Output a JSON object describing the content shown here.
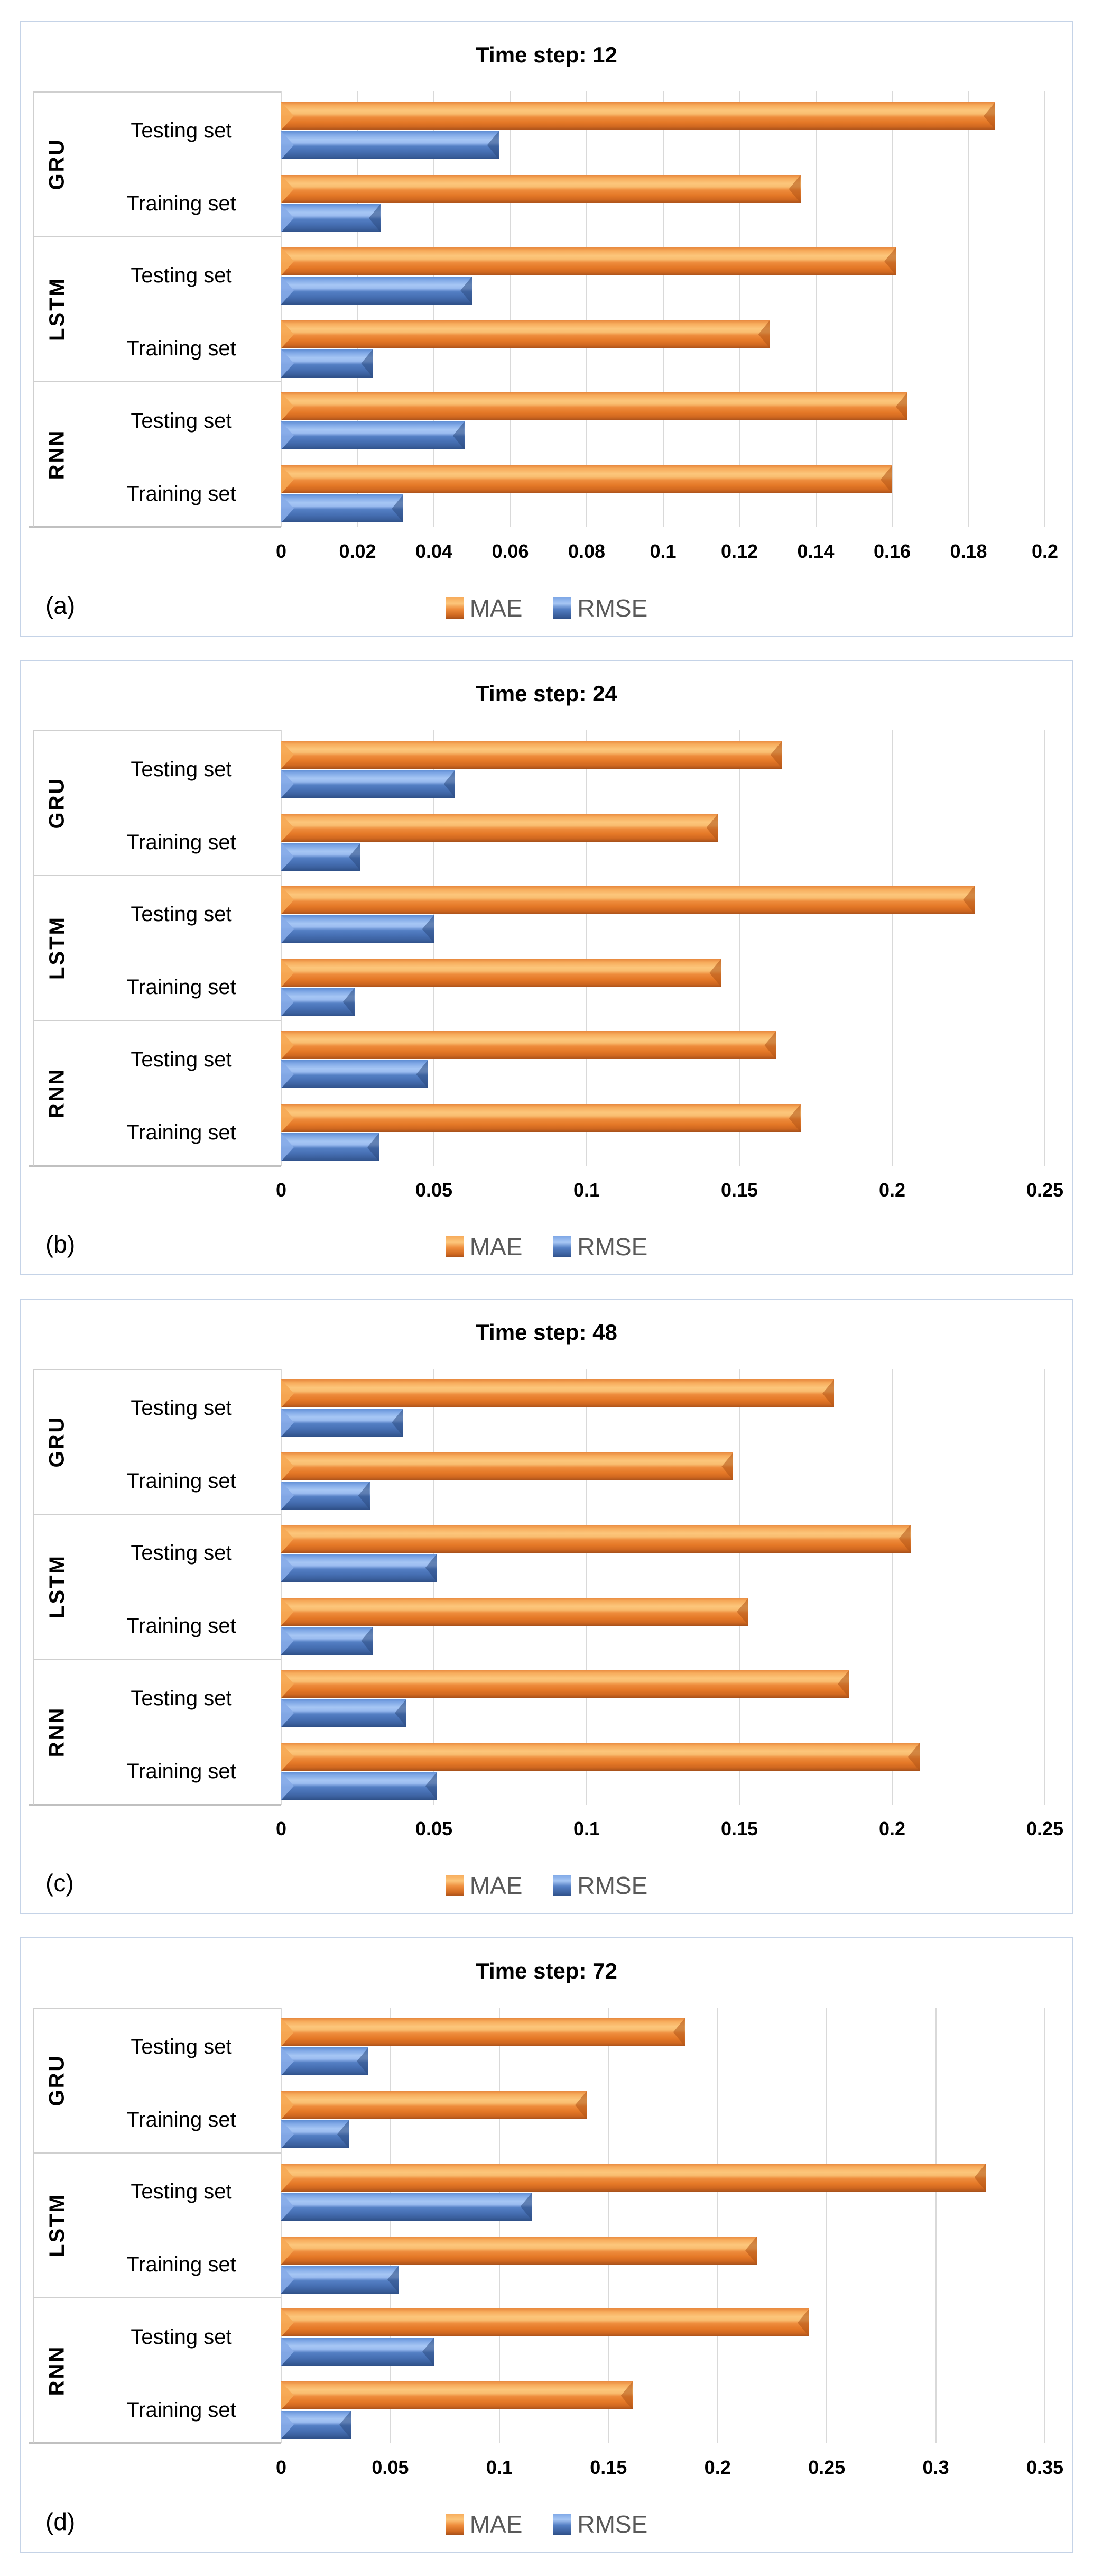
{
  "figure": {
    "colors": {
      "mae": "#ED7D31",
      "rmse": "#4472C4",
      "legend_text": "#595959",
      "gridline": "#D9D9D9",
      "panel_border": "#C5D3E7",
      "background": "#FFFFFF"
    },
    "legend": [
      {
        "name": "MAE",
        "swatch": "mae-swatch-icon"
      },
      {
        "name": "RMSE",
        "swatch": "rmse-swatch-icon"
      }
    ]
  },
  "chart_data": [
    {
      "type": "bar",
      "orientation": "horizontal",
      "panel_label": "(a)",
      "title": "Time step: 12",
      "xlabel": "",
      "ylabel": "",
      "xlim": [
        0,
        0.2
      ],
      "xticks": [
        "0",
        "0.02",
        "0.04",
        "0.06",
        "0.08",
        "0.1",
        "0.12",
        "0.14",
        "0.16",
        "0.18",
        "0.2"
      ],
      "grid": true,
      "legend_position": "bottom",
      "groups": [
        {
          "model": "GRU",
          "rows": [
            {
              "set": "Testing set",
              "MAE": 0.187,
              "RMSE": 0.057
            },
            {
              "set": "Training set",
              "MAE": 0.136,
              "RMSE": 0.026
            }
          ]
        },
        {
          "model": "LSTM",
          "rows": [
            {
              "set": "Testing set",
              "MAE": 0.161,
              "RMSE": 0.05
            },
            {
              "set": "Training set",
              "MAE": 0.128,
              "RMSE": 0.024
            }
          ]
        },
        {
          "model": "RNN",
          "rows": [
            {
              "set": "Testing set",
              "MAE": 0.164,
              "RMSE": 0.048
            },
            {
              "set": "Training set",
              "MAE": 0.16,
              "RMSE": 0.032
            }
          ]
        }
      ]
    },
    {
      "type": "bar",
      "orientation": "horizontal",
      "panel_label": "(b)",
      "title": "Time step: 24",
      "xlabel": "",
      "ylabel": "",
      "xlim": [
        0,
        0.25
      ],
      "xticks": [
        "0",
        "0.05",
        "0.1",
        "0.15",
        "0.2",
        "0.25"
      ],
      "grid": true,
      "legend_position": "bottom",
      "groups": [
        {
          "model": "GRU",
          "rows": [
            {
              "set": "Testing set",
              "MAE": 0.164,
              "RMSE": 0.057
            },
            {
              "set": "Training set",
              "MAE": 0.143,
              "RMSE": 0.026
            }
          ]
        },
        {
          "model": "LSTM",
          "rows": [
            {
              "set": "Testing set",
              "MAE": 0.227,
              "RMSE": 0.05
            },
            {
              "set": "Training set",
              "MAE": 0.144,
              "RMSE": 0.024
            }
          ]
        },
        {
          "model": "RNN",
          "rows": [
            {
              "set": "Testing set",
              "MAE": 0.162,
              "RMSE": 0.048
            },
            {
              "set": "Training set",
              "MAE": 0.17,
              "RMSE": 0.032
            }
          ]
        }
      ]
    },
    {
      "type": "bar",
      "orientation": "horizontal",
      "panel_label": "(c)",
      "title": "Time step: 48",
      "xlabel": "",
      "ylabel": "",
      "xlim": [
        0,
        0.25
      ],
      "xticks": [
        "0",
        "0.05",
        "0.1",
        "0.15",
        "0.2",
        "0.25"
      ],
      "grid": true,
      "legend_position": "bottom",
      "groups": [
        {
          "model": "GRU",
          "rows": [
            {
              "set": "Testing set",
              "MAE": 0.181,
              "RMSE": 0.04
            },
            {
              "set": "Training set",
              "MAE": 0.148,
              "RMSE": 0.029
            }
          ]
        },
        {
          "model": "LSTM",
          "rows": [
            {
              "set": "Testing set",
              "MAE": 0.206,
              "RMSE": 0.051
            },
            {
              "set": "Training set",
              "MAE": 0.153,
              "RMSE": 0.03
            }
          ]
        },
        {
          "model": "RNN",
          "rows": [
            {
              "set": "Testing set",
              "MAE": 0.186,
              "RMSE": 0.041
            },
            {
              "set": "Training set",
              "MAE": 0.209,
              "RMSE": 0.051
            }
          ]
        }
      ]
    },
    {
      "type": "bar",
      "orientation": "horizontal",
      "panel_label": "(d)",
      "title": "Time step: 72",
      "xlabel": "",
      "ylabel": "",
      "xlim": [
        0,
        0.35
      ],
      "xticks": [
        "0",
        "0.05",
        "0.1",
        "0.15",
        "0.2",
        "0.25",
        "0.3",
        "0.35"
      ],
      "grid": true,
      "legend_position": "bottom",
      "groups": [
        {
          "model": "GRU",
          "rows": [
            {
              "set": "Testing set",
              "MAE": 0.185,
              "RMSE": 0.04
            },
            {
              "set": "Training set",
              "MAE": 0.14,
              "RMSE": 0.031
            }
          ]
        },
        {
          "model": "LSTM",
          "rows": [
            {
              "set": "Testing set",
              "MAE": 0.323,
              "RMSE": 0.115
            },
            {
              "set": "Training set",
              "MAE": 0.218,
              "RMSE": 0.054
            }
          ]
        },
        {
          "model": "RNN",
          "rows": [
            {
              "set": "Testing set",
              "MAE": 0.242,
              "RMSE": 0.07
            },
            {
              "set": "Training set",
              "MAE": 0.161,
              "RMSE": 0.032
            }
          ]
        }
      ]
    }
  ]
}
